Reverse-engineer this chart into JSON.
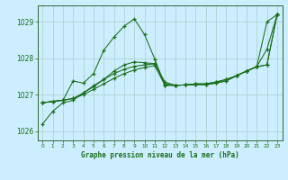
{
  "title": "Graphe pression niveau de la mer (hPa)",
  "background_color": "#cceeff",
  "grid_color": "#aacccc",
  "line_color": "#1a6e1a",
  "xlim": [
    -0.5,
    23.5
  ],
  "ylim": [
    1025.75,
    1029.45
  ],
  "yticks": [
    1026,
    1027,
    1028,
    1029
  ],
  "xticks": [
    0,
    1,
    2,
    3,
    4,
    5,
    6,
    7,
    8,
    9,
    10,
    11,
    12,
    13,
    14,
    15,
    16,
    17,
    18,
    19,
    20,
    21,
    22,
    23
  ],
  "s1": [
    1026.2,
    1026.55,
    1026.78,
    1026.85,
    1027.05,
    1027.25,
    1027.42,
    1027.65,
    1027.82,
    1027.9,
    1027.88,
    1027.85,
    1027.35,
    1027.26,
    1027.27,
    1027.28,
    1027.28,
    1027.32,
    1027.38,
    1027.52,
    1027.65,
    1027.77,
    1029.0,
    1029.2
  ],
  "s2": [
    1026.78,
    1026.82,
    1026.85,
    1027.38,
    1027.32,
    1027.58,
    1028.22,
    1028.58,
    1028.88,
    1029.08,
    1028.65,
    1027.98,
    1027.26,
    1027.26,
    1027.27,
    1027.28,
    1027.28,
    1027.32,
    1027.38,
    1027.52,
    1027.65,
    1027.77,
    1028.25,
    1029.2
  ],
  "s3": [
    1026.78,
    1026.82,
    1026.85,
    1026.9,
    1027.05,
    1027.22,
    1027.42,
    1027.58,
    1027.7,
    1027.78,
    1027.82,
    1027.85,
    1027.3,
    1027.26,
    1027.27,
    1027.3,
    1027.3,
    1027.35,
    1027.42,
    1027.52,
    1027.65,
    1027.77,
    1027.82,
    1029.2
  ],
  "s4": [
    1026.78,
    1026.82,
    1026.85,
    1026.9,
    1027.0,
    1027.15,
    1027.3,
    1027.45,
    1027.58,
    1027.68,
    1027.75,
    1027.8,
    1027.26,
    1027.26,
    1027.27,
    1027.3,
    1027.3,
    1027.35,
    1027.42,
    1027.52,
    1027.65,
    1027.77,
    1027.82,
    1029.2
  ]
}
